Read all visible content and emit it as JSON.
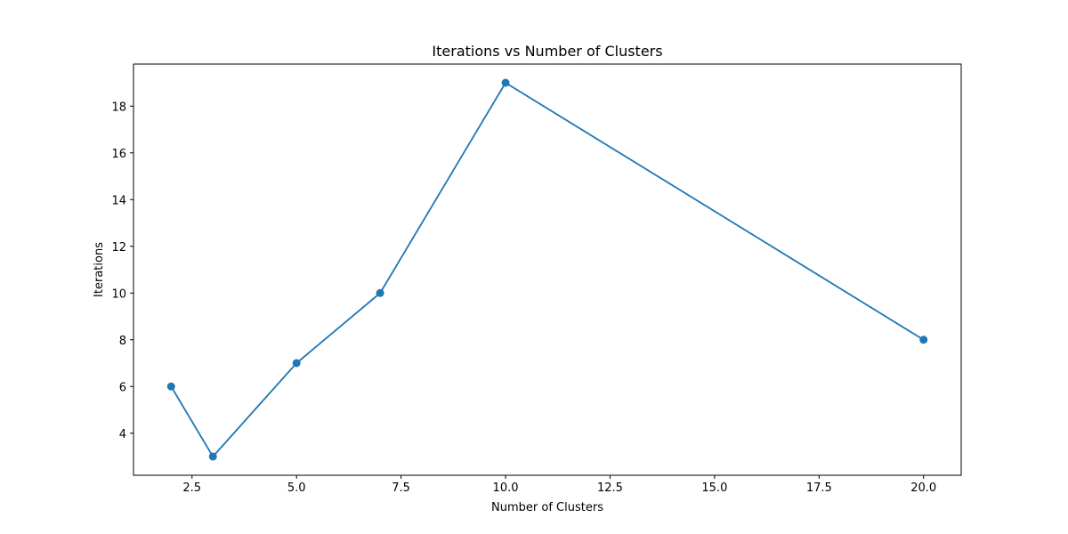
{
  "chart_data": {
    "type": "line",
    "title": "Iterations vs Number of Clusters",
    "xlabel": "Number of Clusters",
    "ylabel": "Iterations",
    "x": [
      2,
      3,
      5,
      7,
      10,
      20
    ],
    "series": [
      {
        "values": [
          6,
          3,
          7,
          10,
          19,
          8
        ],
        "color": "#1f77b4",
        "marker": "circle"
      }
    ],
    "xlim": [
      1.1,
      20.9
    ],
    "ylim": [
      2.2,
      19.8
    ],
    "xticks": [
      2.5,
      5.0,
      7.5,
      10.0,
      12.5,
      15.0,
      17.5,
      20.0
    ],
    "xtick_labels": [
      "2.5",
      "5.0",
      "7.5",
      "10.0",
      "12.5",
      "15.0",
      "17.5",
      "20.0"
    ],
    "yticks": [
      4,
      6,
      8,
      10,
      12,
      14,
      16,
      18
    ],
    "ytick_labels": [
      "4",
      "6",
      "8",
      "10",
      "12",
      "14",
      "16",
      "18"
    ],
    "grid": false,
    "legend": "none"
  }
}
